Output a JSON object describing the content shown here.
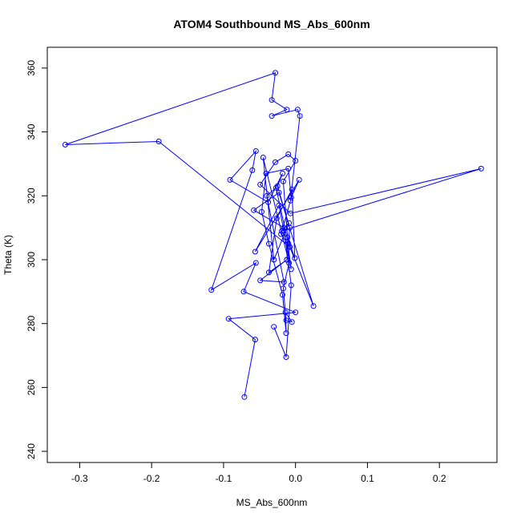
{
  "chart_data": {
    "type": "line",
    "title": "ATOM4 Southbound MS_Abs_600nm",
    "xlabel": "MS_Abs_600nm",
    "ylabel": "Theta (K)",
    "xlim": [
      -0.345,
      0.28
    ],
    "ylim": [
      236.5,
      366.5
    ],
    "xticks": [
      -0.3,
      -0.2,
      -0.1,
      0.0,
      0.1,
      0.2
    ],
    "xtick_labels": [
      "-0.3",
      "-0.2",
      "-0.1",
      "0.0",
      "0.1",
      "0.2"
    ],
    "yticks": [
      240,
      260,
      280,
      300,
      320,
      340,
      360
    ],
    "ytick_labels": [
      "240",
      "260",
      "280",
      "300",
      "320",
      "340",
      "360"
    ],
    "grid": false,
    "series_color": "#0000ff",
    "marker": "open-circle",
    "series": [
      {
        "x": [
          -0.071,
          -0.056,
          -0.093,
          0.0,
          -0.072,
          -0.055,
          -0.117,
          -0.06,
          -0.055,
          -0.091,
          -0.038,
          -0.018,
          -0.025,
          -0.008,
          -0.01,
          -0.027,
          -0.04,
          -0.016,
          -0.049,
          -0.012,
          -0.037,
          -0.026,
          -0.005,
          -0.001,
          -0.011,
          -0.017,
          0.0,
          -0.01,
          -0.028,
          -0.049,
          -0.007,
          0.258,
          -0.019,
          -0.009,
          -0.03,
          -0.045,
          -0.009,
          -0.017,
          -0.013,
          -0.005,
          -0.014,
          -0.013,
          -0.018,
          -0.037,
          -0.047,
          -0.041,
          -0.01,
          -0.006,
          0.005,
          -0.056,
          -0.023,
          -0.006,
          -0.011,
          -0.012,
          -0.008,
          -0.02,
          -0.007,
          0.006,
          0.003,
          -0.033,
          -0.012,
          -0.033,
          -0.028,
          -0.32,
          -0.19,
          -0.008,
          0.025,
          -0.023,
          -0.058,
          -0.016,
          -0.006,
          -0.013,
          -0.03
        ],
        "y": [
          257.0,
          275.0,
          281.5,
          283.5,
          290.0,
          299.0,
          290.5,
          328.0,
          334.0,
          325.0,
          318.0,
          327.0,
          323.0,
          310.0,
          305.0,
          322.5,
          320.0,
          293.0,
          293.5,
          300.0,
          296.0,
          313.0,
          322.0,
          300.5,
          307.0,
          324.5,
          331.0,
          333.0,
          330.5,
          323.5,
          314.5,
          328.5,
          309.0,
          311.5,
          300.0,
          332.0,
          299.0,
          291.0,
          281.0,
          280.5,
          283.5,
          277.0,
          289.0,
          305.0,
          315.0,
          327.0,
          328.5,
          319.5,
          325.0,
          302.5,
          317.0,
          297.0,
          305.5,
          300.0,
          304.0,
          308.0,
          318.5,
          345.0,
          347.0,
          345.0,
          347.0,
          350.0,
          358.5,
          336.0,
          337.0,
          304.0,
          285.5,
          321.0,
          315.5,
          310.0,
          292.0,
          269.5,
          279.0
        ]
      }
    ]
  }
}
